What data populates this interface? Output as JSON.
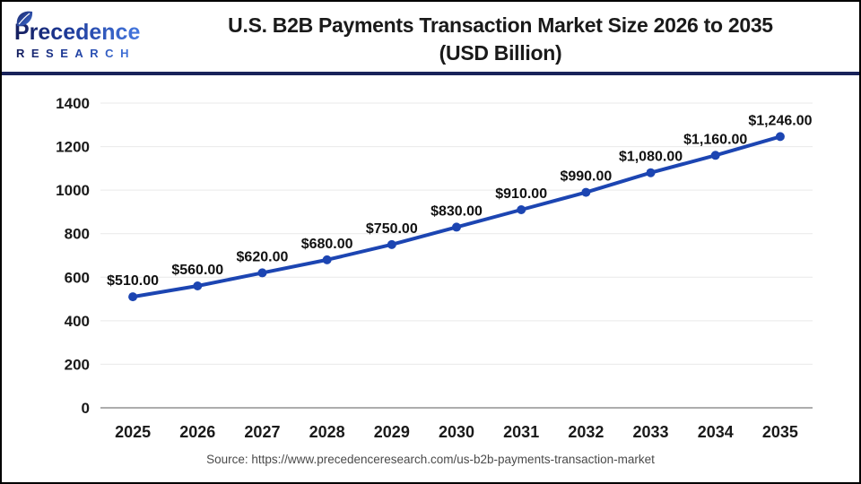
{
  "logo": {
    "brand": "Precedence",
    "sub": "RESEARCH"
  },
  "header": {
    "title_line1": "U.S. B2B Payments Transaction Market Size 2026 to 2035",
    "title_line2": "(USD Billion)"
  },
  "source": "Source: https://www.precedenceresearch.com/us-b2b-payments-transaction-market",
  "colors": {
    "line": "#1C45B2",
    "gridline": "#E9E9E9",
    "axis_line": "#ADADAD",
    "text_dark": "#1A1A1A",
    "divider_navy": "#19235A",
    "brand_navy": "#1A2468",
    "brand_blue": "#4679E0",
    "source_gray": "#4A4A4A"
  },
  "chart_data": {
    "type": "line",
    "title": "U.S. B2B Payments Transaction Market Size 2026 to 2035 (USD Billion)",
    "categories": [
      "2025",
      "2026",
      "2027",
      "2028",
      "2029",
      "2030",
      "2031",
      "2032",
      "2033",
      "2034",
      "2035"
    ],
    "values": [
      510,
      560,
      620,
      680,
      750,
      830,
      910,
      990,
      1080,
      1160,
      1246
    ],
    "point_labels": [
      "$510.00",
      "$560.00",
      "$620.00",
      "$680.00",
      "$750.00",
      "$830.00",
      "$910.00",
      "$990.00",
      "$1,080.00",
      "$1,160.00",
      "$1,246.00"
    ],
    "ylim": [
      0,
      1400
    ],
    "ytick_step": 200,
    "grid": true,
    "legend": "none",
    "line_color": "#1C45B2",
    "marker": "circle"
  }
}
